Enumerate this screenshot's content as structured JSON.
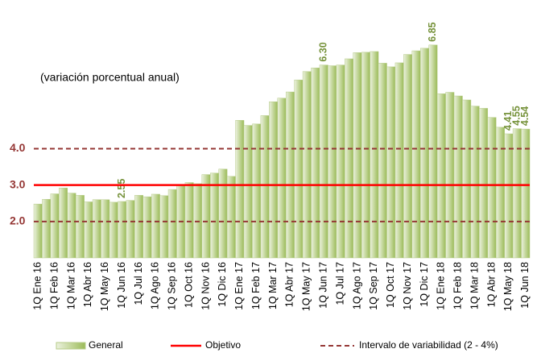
{
  "chart_data": {
    "type": "bar",
    "subtitle": "(variación porcentual anual)",
    "categories": [
      "1Q Ene 16",
      null,
      "1Q Feb 16",
      null,
      "1Q Mar 16",
      null,
      "1Q Abr 16",
      null,
      "1Q May 16",
      null,
      "1Q Jun 16",
      null,
      "1Q Jul 16",
      null,
      "1Q Ago 16",
      null,
      "1Q Sep 16",
      null,
      "1Q Oct 16",
      null,
      "1Q Nov 16",
      null,
      "1Q Dic 16",
      null,
      "1Q Ene 17",
      null,
      "1Q Feb 17",
      null,
      "1Q Mar 17",
      null,
      "1Q Abr 17",
      null,
      "1Q May 17",
      null,
      "1Q Jun 17",
      null,
      "1Q Jul 17",
      null,
      "1Q Ago 17",
      null,
      "1Q Sep 17",
      null,
      "1Q Oct 17",
      null,
      "1Q Nov 17",
      null,
      "1Q Dic 17",
      null,
      "1Q Ene 18",
      null,
      "1Q Feb 18",
      null,
      "1Q Mar 18",
      null,
      "1Q Abr 18",
      null,
      "1Q May 18",
      null,
      "1Q Jun 18"
    ],
    "series": [
      {
        "name": "General",
        "color": "#c4d79b",
        "values": [
          2.48,
          2.61,
          2.76,
          2.92,
          2.78,
          2.72,
          2.54,
          2.6,
          2.6,
          2.53,
          2.55,
          2.58,
          2.72,
          2.68,
          2.75,
          2.71,
          2.88,
          2.99,
          3.07,
          3.04,
          3.29,
          3.33,
          3.44,
          3.24,
          4.78,
          4.64,
          4.68,
          4.91,
          5.29,
          5.39,
          5.56,
          5.89,
          6.12,
          6.22,
          6.3,
          6.28,
          6.3,
          6.47,
          6.64,
          6.65,
          6.67,
          6.35,
          6.25,
          6.36,
          6.59,
          6.69,
          6.76,
          6.85,
          5.51,
          5.55,
          5.45,
          5.34,
          5.17,
          5.11,
          4.86,
          4.59,
          4.41,
          4.55,
          4.54
        ],
        "value_labels": [
          null,
          null,
          null,
          null,
          null,
          null,
          null,
          null,
          null,
          null,
          "2.55",
          null,
          null,
          null,
          null,
          null,
          null,
          null,
          null,
          null,
          null,
          null,
          null,
          null,
          null,
          null,
          null,
          null,
          null,
          null,
          null,
          null,
          null,
          null,
          "6.30",
          null,
          null,
          null,
          null,
          null,
          null,
          null,
          null,
          null,
          null,
          null,
          null,
          "6.85",
          null,
          null,
          null,
          null,
          null,
          null,
          null,
          null,
          "4.41",
          "4.55",
          "4.54"
        ]
      }
    ],
    "objetivo": {
      "name": "Objetivo",
      "value": 3,
      "label": "3.0",
      "color": "#ff0000"
    },
    "intervalo": {
      "name": "Intervalo de variabilidad (2 - 4%)",
      "values": [
        2,
        4
      ],
      "value_labels": [
        "2.0",
        "4.0"
      ],
      "color": "#953735"
    },
    "ylim": [
      1,
      7.2
    ]
  }
}
